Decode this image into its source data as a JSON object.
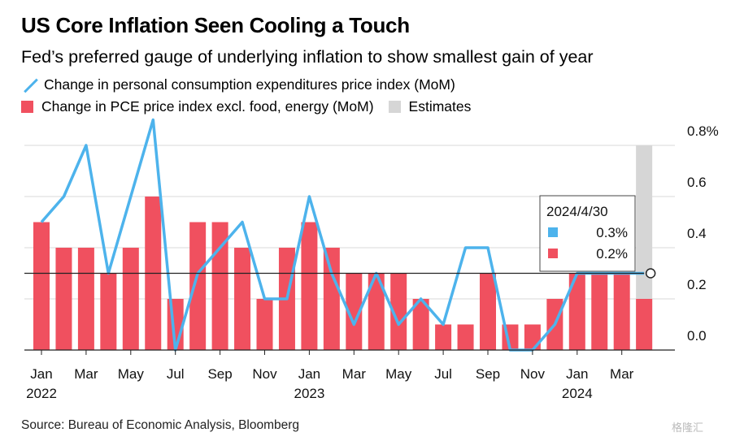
{
  "title": "US Core Inflation Seen Cooling a Touch",
  "subtitle": "Fed’s preferred gauge of underlying inflation to show smallest gain of year",
  "source": "Source: Bureau of Economic Analysis, Bloomberg",
  "watermark": "格隆汇",
  "legend": {
    "line_label": "Change in personal consumption expenditures price index (MoM)",
    "bar_label": "Change in PCE price index excl. food, energy (MoM)",
    "estimate_label": "Estimates"
  },
  "tooltip": {
    "date": "2024/4/30",
    "line_value": "0.3%",
    "bar_value": "0.2%"
  },
  "chart_data": {
    "type": "bar",
    "title": "US Core Inflation Seen Cooling a Touch",
    "categories": [
      "2022-01",
      "2022-02",
      "2022-03",
      "2022-04",
      "2022-05",
      "2022-06",
      "2022-07",
      "2022-08",
      "2022-09",
      "2022-10",
      "2022-11",
      "2022-12",
      "2023-01",
      "2023-02",
      "2023-03",
      "2023-04",
      "2023-05",
      "2023-06",
      "2023-07",
      "2023-08",
      "2023-09",
      "2023-10",
      "2023-11",
      "2023-12",
      "2024-01",
      "2024-02",
      "2024-03",
      "2024-04"
    ],
    "x_tick_labels": [
      {
        "index": 0,
        "label": "Jan",
        "year": "2022"
      },
      {
        "index": 2,
        "label": "Mar",
        "year": ""
      },
      {
        "index": 4,
        "label": "May",
        "year": ""
      },
      {
        "index": 6,
        "label": "Jul",
        "year": ""
      },
      {
        "index": 8,
        "label": "Sep",
        "year": ""
      },
      {
        "index": 10,
        "label": "Nov",
        "year": ""
      },
      {
        "index": 12,
        "label": "Jan",
        "year": "2023"
      },
      {
        "index": 14,
        "label": "Mar",
        "year": ""
      },
      {
        "index": 16,
        "label": "May",
        "year": ""
      },
      {
        "index": 18,
        "label": "Jul",
        "year": ""
      },
      {
        "index": 20,
        "label": "Sep",
        "year": ""
      },
      {
        "index": 22,
        "label": "Nov",
        "year": ""
      },
      {
        "index": 24,
        "label": "Jan",
        "year": "2024"
      },
      {
        "index": 26,
        "label": "Mar",
        "year": ""
      }
    ],
    "series": [
      {
        "name": "Change in PCE price index excl. food, energy (MoM)",
        "kind": "bar",
        "color": "#f0505f",
        "values": [
          0.5,
          0.4,
          0.4,
          0.3,
          0.4,
          0.6,
          0.2,
          0.5,
          0.5,
          0.4,
          0.2,
          0.4,
          0.5,
          0.4,
          0.3,
          0.3,
          0.3,
          0.2,
          0.1,
          0.1,
          0.3,
          0.1,
          0.1,
          0.2,
          0.3,
          0.3,
          0.3,
          0.2
        ]
      },
      {
        "name": "Change in personal consumption expenditures price index (MoM)",
        "kind": "line",
        "color": "#4db3ec",
        "values": [
          0.5,
          0.6,
          0.8,
          0.3,
          0.6,
          0.9,
          0.0,
          0.3,
          0.4,
          0.5,
          0.2,
          0.2,
          0.6,
          0.3,
          0.1,
          0.3,
          0.1,
          0.2,
          0.1,
          0.4,
          0.4,
          0.0,
          0.0,
          0.1,
          0.3,
          0.3,
          0.3,
          0.3
        ]
      }
    ],
    "estimate": {
      "label": "Estimates",
      "color": "#d6d6d6",
      "index": 27,
      "to": 0.8
    },
    "y_ticks": [
      "0.0",
      "0.2",
      "0.4",
      "0.6",
      "0.8%"
    ],
    "ylim": [
      0,
      0.8
    ],
    "reference_line": 0.3,
    "grid": true
  }
}
